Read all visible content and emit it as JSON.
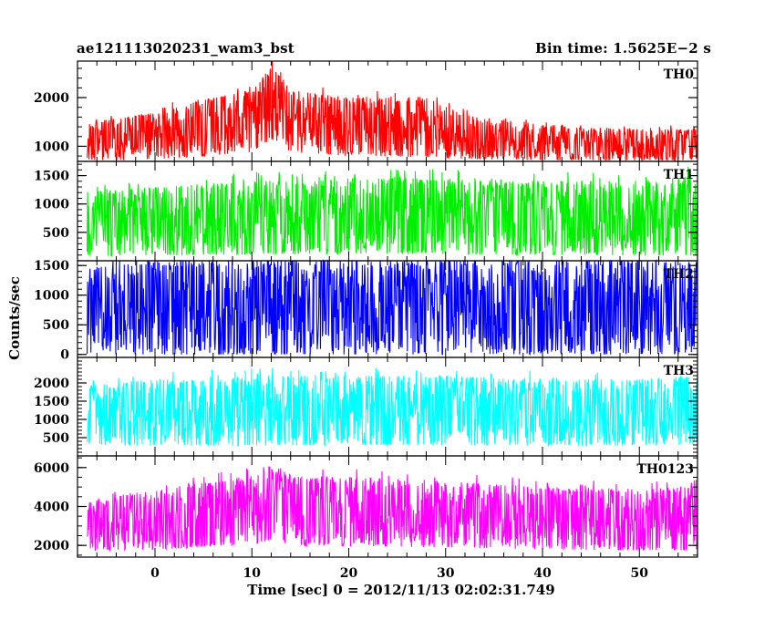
{
  "header": {
    "title": "ae121113020231_wam3_bst",
    "bin_time": "Bin time: 1.5625E−2 s"
  },
  "axes": {
    "xlabel": "Time [sec] 0 = 2012/11/13 02:02:31.749",
    "ylabel": "Counts/sec"
  },
  "chart_data": {
    "type": "line",
    "x_range": [
      -8,
      56
    ],
    "x_ticks": [
      0,
      10,
      20,
      30,
      40,
      50
    ],
    "x_minor_step": 2,
    "grid": false,
    "panels": [
      {
        "name": "TH0",
        "color": "#ff0000",
        "ylim": [
          690,
          2750
        ],
        "y_ticks": [
          1000,
          2000
        ],
        "y_minor_step": 200,
        "y_tick_labels": [
          "1000",
          "2000"
        ],
        "envelope": {
          "x": [
            -8,
            0,
            5,
            10,
            12,
            14,
            20,
            28,
            32,
            40,
            50,
            56
          ],
          "upper": [
            1450,
            1700,
            1950,
            2150,
            2650,
            2150,
            2000,
            2000,
            1650,
            1450,
            1350,
            1350
          ],
          "lower": [
            700,
            740,
            800,
            880,
            1150,
            880,
            800,
            780,
            740,
            720,
            700,
            700
          ]
        }
      },
      {
        "name": "TH1",
        "color": "#00ee00",
        "ylim": [
          0,
          1750
        ],
        "y_ticks": [
          500,
          1000,
          1500
        ],
        "y_minor_step": 100,
        "y_tick_labels": [
          "500",
          "1000",
          "1500"
        ],
        "envelope": {
          "x": [
            -8,
            0,
            10,
            20,
            30,
            40,
            50,
            56
          ],
          "upper": [
            1200,
            1300,
            1400,
            1450,
            1450,
            1400,
            1400,
            1500
          ],
          "lower": [
            80,
            90,
            110,
            120,
            110,
            100,
            90,
            90
          ]
        }
      },
      {
        "name": "TH2",
        "color": "#0000ff",
        "ylim": [
          -50,
          1580
        ],
        "y_ticks": [
          0,
          500,
          1000,
          1500
        ],
        "y_minor_step": 100,
        "y_tick_labels": [
          "0",
          "500",
          "1000",
          "1500"
        ],
        "envelope": {
          "x": [
            -8,
            0,
            10,
            20,
            30,
            40,
            50,
            56
          ],
          "upper": [
            1450,
            1580,
            1580,
            1580,
            1580,
            1580,
            1580,
            1580
          ],
          "lower": [
            10,
            0,
            0,
            0,
            0,
            0,
            0,
            0
          ]
        }
      },
      {
        "name": "TH3",
        "color": "#00ffff",
        "ylim": [
          0,
          2700
        ],
        "y_ticks": [
          500,
          1000,
          1500,
          2000
        ],
        "y_minor_step": 100,
        "y_tick_labels": [
          "500",
          "1000",
          "1500",
          "2000"
        ],
        "envelope": {
          "x": [
            -8,
            0,
            10,
            20,
            30,
            40,
            50,
            56
          ],
          "upper": [
            1900,
            2100,
            2200,
            2200,
            2200,
            2100,
            2100,
            2200
          ],
          "lower": [
            300,
            280,
            280,
            300,
            290,
            280,
            280,
            300
          ]
        }
      },
      {
        "name": "TH0123",
        "color": "#ff00ff",
        "ylim": [
          1400,
          6600
        ],
        "y_ticks": [
          2000,
          4000,
          6000
        ],
        "y_minor_step": 500,
        "y_tick_labels": [
          "2000",
          "4000",
          "6000"
        ],
        "envelope": {
          "x": [
            -8,
            0,
            5,
            10,
            12,
            14,
            20,
            30,
            40,
            50,
            56
          ],
          "upper": [
            4200,
            4900,
            5200,
            5600,
            6200,
            5600,
            5500,
            5300,
            5000,
            4900,
            5000
          ],
          "lower": [
            1700,
            1800,
            1900,
            2000,
            2300,
            2000,
            1950,
            1900,
            1800,
            1750,
            1750
          ]
        }
      }
    ]
  }
}
